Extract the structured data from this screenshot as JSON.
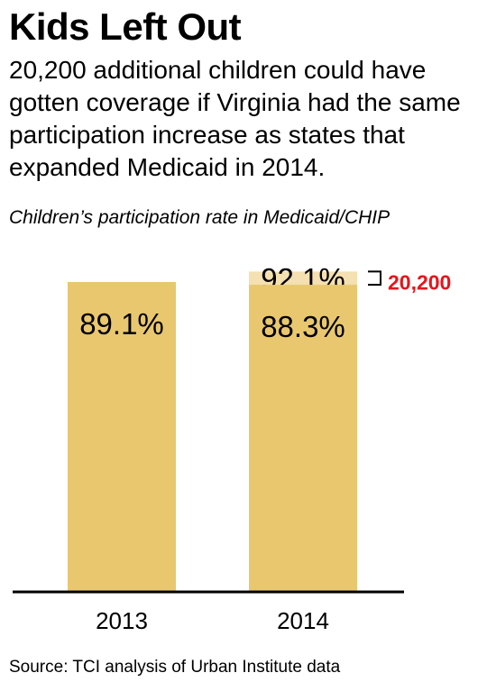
{
  "title": "Kids Left Out",
  "subtitle": "20,200 additional children could have gotten coverage if Virginia had the same participation increase as states that expanded Medicaid in 2014.",
  "caption": "Children’s participation rate in Medicaid/CHIP",
  "source": "Source: TCI analysis of Urban Institute data",
  "colors": {
    "bar": "#E8C76F",
    "bar_potential": "#F4E0B0",
    "annotation": "#E8141C",
    "axis": "#000000"
  },
  "chart_data": {
    "type": "bar",
    "categories": [
      "2013",
      "2014"
    ],
    "values": [
      89.1,
      88.3
    ],
    "value_labels": [
      "89.1%",
      "88.3%"
    ],
    "stacked_extra": {
      "category": "2014",
      "value": 92.1,
      "label": "92.1%"
    },
    "annotation": {
      "category": "2014",
      "text": "20,200"
    },
    "xlabel": "",
    "ylabel": "",
    "ylim": [
      0,
      100
    ],
    "grid": false,
    "legend": "none"
  }
}
